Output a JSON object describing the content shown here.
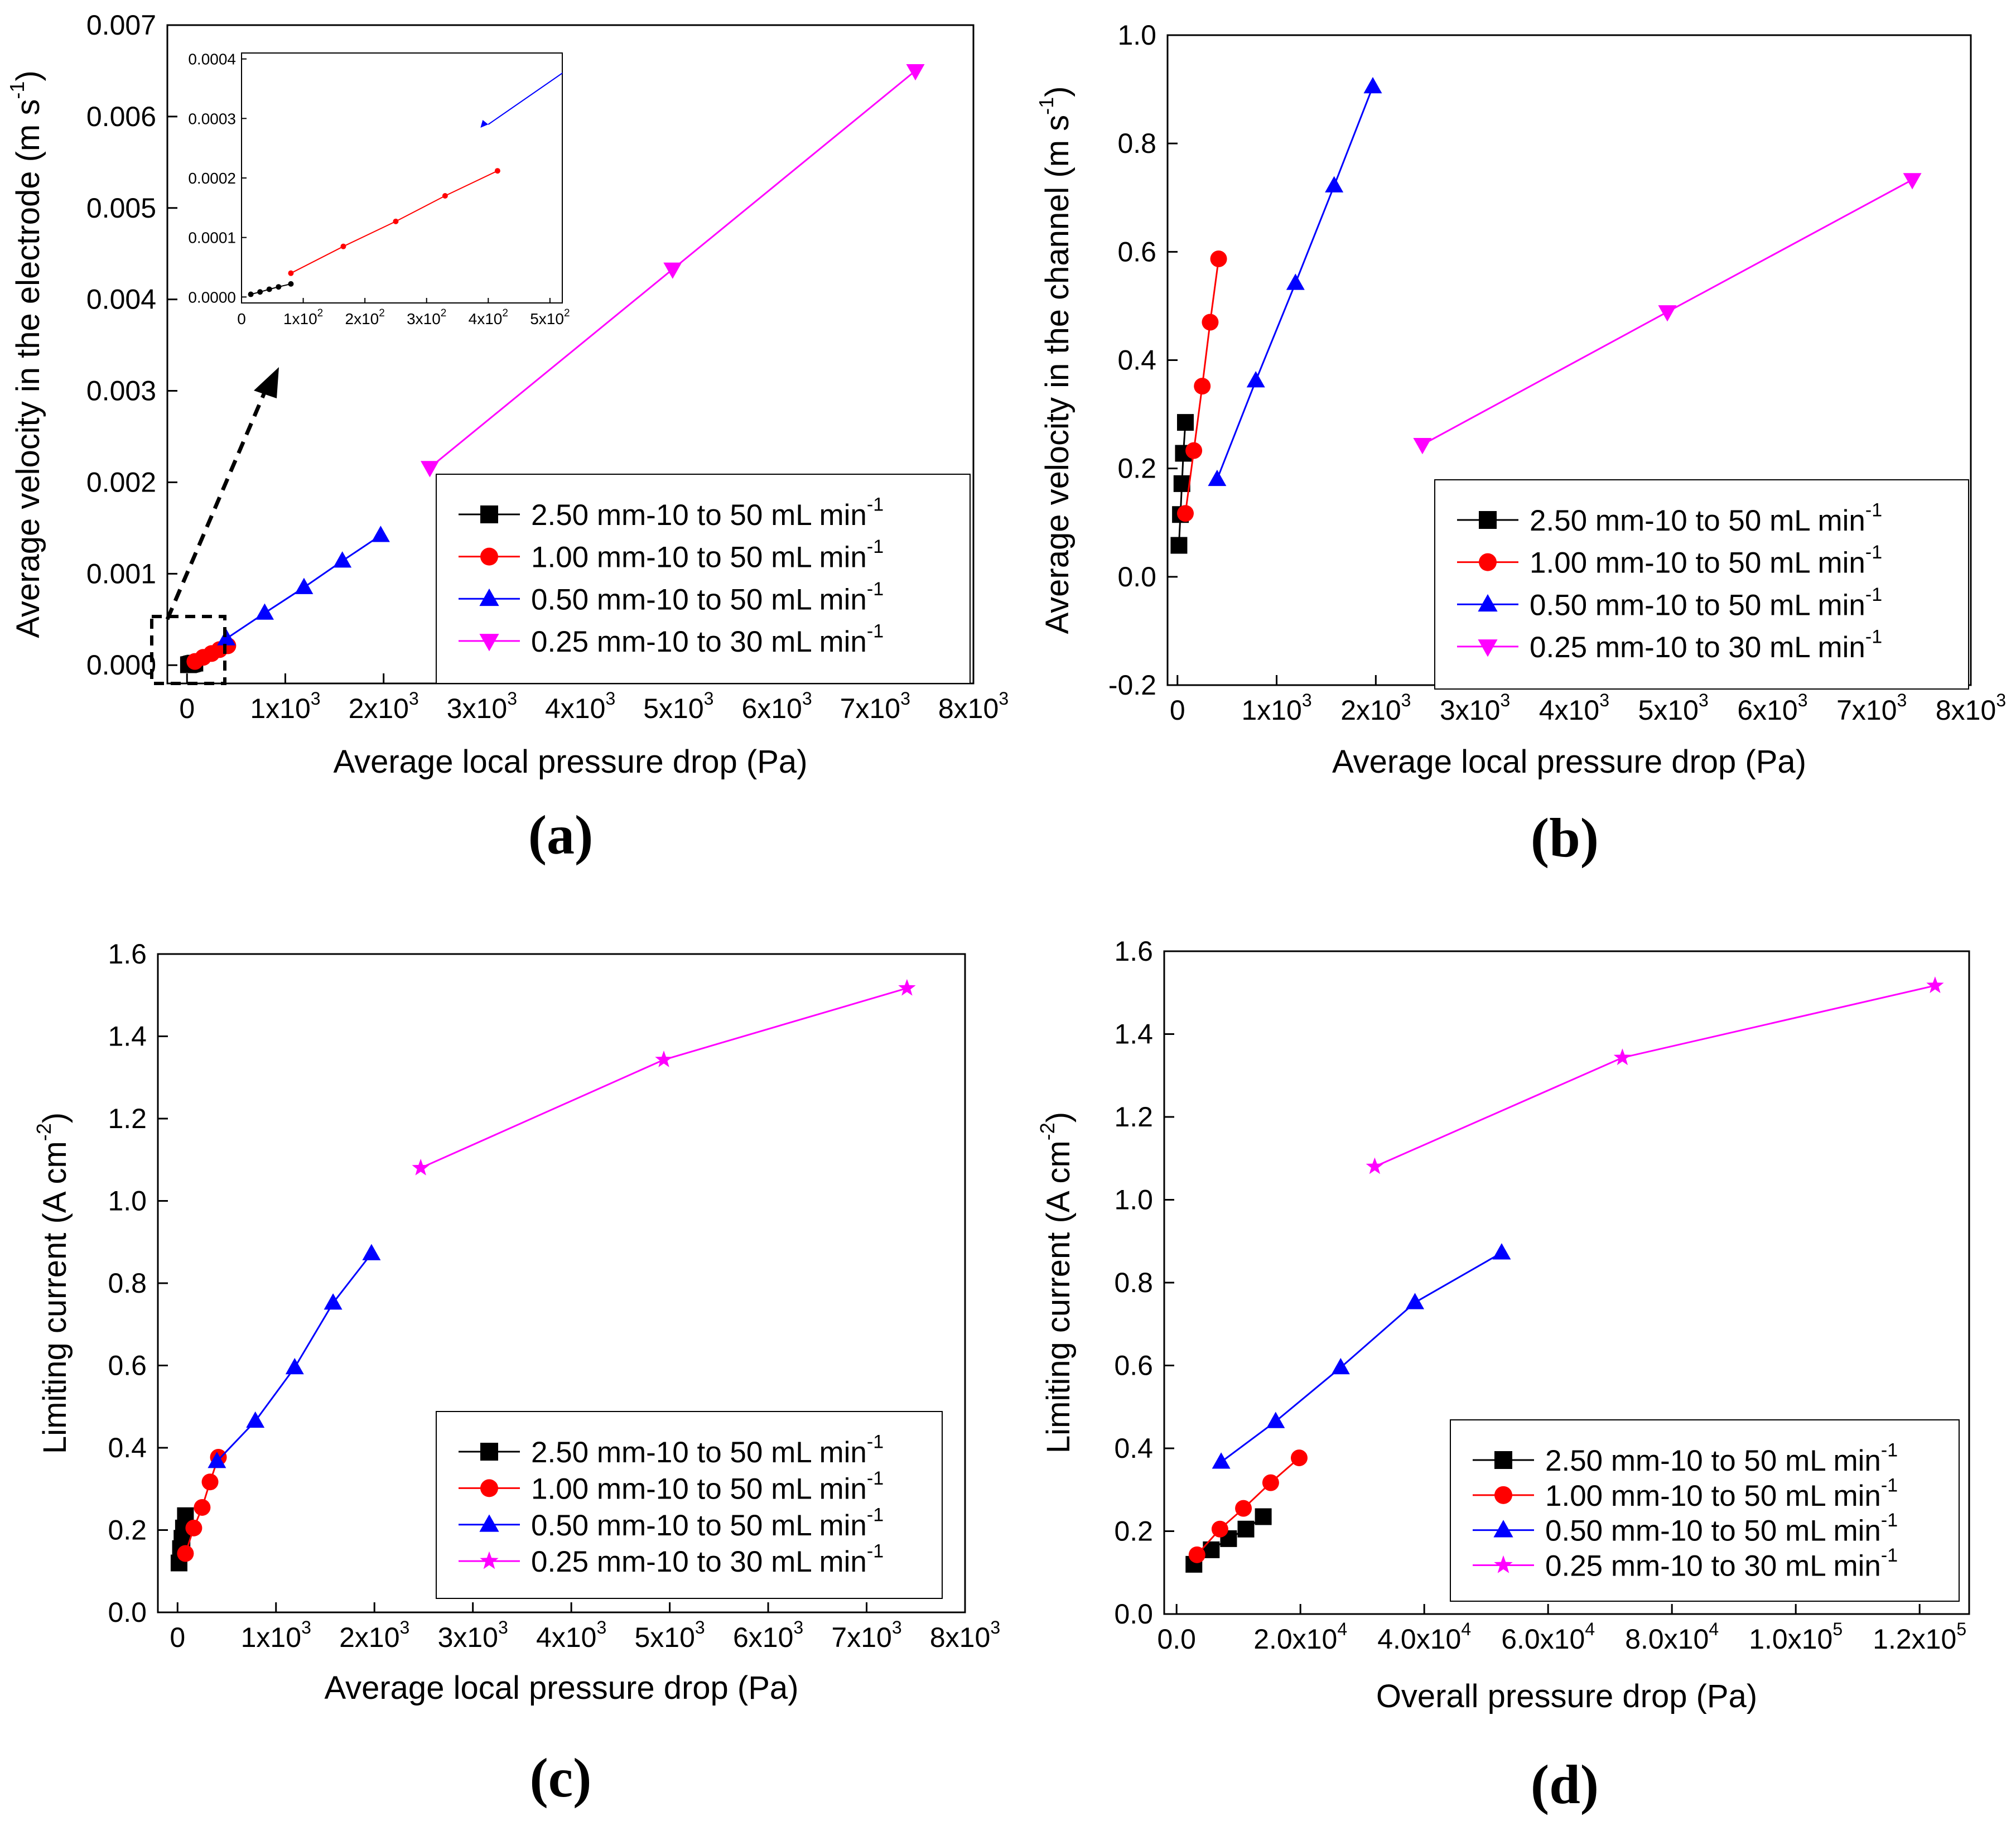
{
  "chart_data": [
    {
      "panel": "(a)",
      "type": "line",
      "xlabel": "Average local pressure drop (Pa)",
      "ylabel": "Average velocity in the electrode",
      "ylabel_unit": "(m s⁻¹)",
      "xlim": [
        -200,
        8000
      ],
      "ylim": [
        -0.0002,
        0.007
      ],
      "xticks": [
        0,
        1000,
        2000,
        3000,
        4000,
        5000,
        6000,
        7000,
        8000
      ],
      "xtick_labels": [
        "0",
        "1x10³",
        "2x10³",
        "3x10³",
        "4x10³",
        "5x10³",
        "6x10³",
        "7x10³",
        "8x10³"
      ],
      "yticks": [
        0,
        0.001,
        0.002,
        0.003,
        0.004,
        0.005,
        0.006,
        0.007
      ],
      "ytick_labels": [
        "0.000",
        "0.001",
        "0.002",
        "0.003",
        "0.004",
        "0.005",
        "0.006",
        "0.007"
      ],
      "legend": "bottom-right",
      "series": [
        {
          "name": "2.50 mm-10 to 50 mL min⁻¹",
          "color": "#000000",
          "marker": "square",
          "x": [
            15,
            30,
            45,
            60,
            80
          ],
          "y": [
            4.5e-06,
            8.5e-06,
            1.3e-05,
            1.7e-05,
            2.2e-05
          ]
        },
        {
          "name": "1.00 mm-10 to 50 mL min⁻¹",
          "color": "#ff0000",
          "marker": "circle",
          "x": [
            80,
            165,
            250,
            330,
            415
          ],
          "y": [
            4e-05,
            8.5e-05,
            0.000127,
            0.00017,
            0.000212
          ]
        },
        {
          "name": "0.50 mm-10 to 50 mL min⁻¹",
          "color": "#0000ff",
          "marker": "triangle-up",
          "x": [
            400,
            790,
            1190,
            1580,
            1970
          ],
          "y": [
            0.00029,
            0.00057,
            0.00085,
            0.00114,
            0.00142
          ]
        },
        {
          "name": "0.25 mm-10 to 30 mL min⁻¹",
          "color": "#ff00ff",
          "marker": "triangle-down",
          "x": [
            2470,
            4940,
            7410
          ],
          "y": [
            0.00216,
            0.00433,
            0.0065
          ]
        }
      ],
      "inset": {
        "xlim": [
          0,
          520
        ],
        "ylim": [
          -1e-05,
          0.00041
        ],
        "xticks": [
          0,
          100,
          200,
          300,
          400,
          500
        ],
        "xtick_labels": [
          "0",
          "1x10²",
          "2x10²",
          "3x10²",
          "4x10²",
          "5x10²"
        ],
        "yticks": [
          0,
          0.0001,
          0.0002,
          0.0003,
          0.0004
        ],
        "ytick_labels": [
          "0.0000",
          "0.0001",
          "0.0002",
          "0.0003",
          "0.0004"
        ]
      }
    },
    {
      "panel": "(b)",
      "type": "line",
      "xlabel": "Average local pressure drop (Pa)",
      "ylabel": "Average velocity in the channel",
      "ylabel_unit": "(m s⁻¹)",
      "xlim": [
        -100,
        8000
      ],
      "ylim": [
        -0.2,
        1.0
      ],
      "xticks": [
        0,
        1000,
        2000,
        3000,
        4000,
        5000,
        6000,
        7000,
        8000
      ],
      "xtick_labels": [
        "0",
        "1x10³",
        "2x10³",
        "3x10³",
        "4x10³",
        "5x10³",
        "6x10³",
        "7x10³",
        "8x10³"
      ],
      "yticks": [
        -0.2,
        0,
        0.2,
        0.4,
        0.6,
        0.8,
        1.0
      ],
      "ytick_labels": [
        "-0.2",
        "0.0",
        "0.2",
        "0.4",
        "0.6",
        "0.8",
        "1.0"
      ],
      "legend": "bottom-right",
      "series": [
        {
          "name": "2.50 mm-10 to 50 mL min⁻¹",
          "color": "#000000",
          "marker": "square",
          "x": [
            15,
            30,
            45,
            60,
            80
          ],
          "y": [
            0.058,
            0.115,
            0.172,
            0.228,
            0.285
          ]
        },
        {
          "name": "1.00 mm-10 to 50 mL min⁻¹",
          "color": "#ff0000",
          "marker": "circle",
          "x": [
            80,
            165,
            250,
            330,
            415
          ],
          "y": [
            0.117,
            0.233,
            0.352,
            0.47,
            0.587
          ]
        },
        {
          "name": "0.50 mm-10 to 50 mL min⁻¹",
          "color": "#0000ff",
          "marker": "triangle-up",
          "x": [
            400,
            790,
            1190,
            1580,
            1970
          ],
          "y": [
            0.18,
            0.362,
            0.542,
            0.722,
            0.905
          ]
        },
        {
          "name": "0.25 mm-10 to 30 mL min⁻¹",
          "color": "#ff00ff",
          "marker": "triangle-down",
          "x": [
            2470,
            4940,
            7410
          ],
          "y": [
            0.244,
            0.489,
            0.733
          ]
        }
      ]
    },
    {
      "panel": "(c)",
      "type": "line",
      "xlabel": "Average local pressure drop (Pa)",
      "ylabel": "Limiting current",
      "ylabel_unit": "(A cm⁻²)",
      "xlim": [
        -200,
        8000
      ],
      "ylim": [
        0,
        1.6
      ],
      "xticks": [
        0,
        1000,
        2000,
        3000,
        4000,
        5000,
        6000,
        7000,
        8000
      ],
      "xtick_labels": [
        "0",
        "1x10³",
        "2x10³",
        "3x10³",
        "4x10³",
        "5x10³",
        "6x10³",
        "7x10³",
        "8x10³"
      ],
      "yticks": [
        0,
        0.2,
        0.4,
        0.6,
        0.8,
        1.0,
        1.2,
        1.4,
        1.6
      ],
      "ytick_labels": [
        "0.0",
        "0.2",
        "0.4",
        "0.6",
        "0.8",
        "1.0",
        "1.2",
        "1.4",
        "1.6"
      ],
      "legend": "bottom-right",
      "series": [
        {
          "name": "2.50 mm-10 to 50 mL min⁻¹",
          "color": "#000000",
          "marker": "square",
          "x": [
            15,
            30,
            45,
            60,
            80
          ],
          "y": [
            0.12,
            0.155,
            0.18,
            0.205,
            0.235
          ]
        },
        {
          "name": "1.00 mm-10 to 50 mL min⁻¹",
          "color": "#ff0000",
          "marker": "circle",
          "x": [
            80,
            165,
            250,
            330,
            415
          ],
          "y": [
            0.143,
            0.205,
            0.255,
            0.317,
            0.377
          ]
        },
        {
          "name": "0.50 mm-10 to 50 mL min⁻¹",
          "color": "#0000ff",
          "marker": "triangle-up",
          "x": [
            400,
            790,
            1190,
            1580,
            1970
          ],
          "y": [
            0.367,
            0.465,
            0.595,
            0.752,
            0.872
          ]
        },
        {
          "name": "0.25 mm-10 to 30 mL min⁻¹",
          "color": "#ff00ff",
          "marker": "star",
          "x": [
            2470,
            4940,
            7410
          ],
          "y": [
            1.08,
            1.343,
            1.517
          ]
        }
      ]
    },
    {
      "panel": "(d)",
      "type": "line",
      "xlabel": "Overall pressure drop (Pa)",
      "ylabel": "Limiting current",
      "ylabel_unit": "(A cm⁻²)",
      "xlim": [
        -2000,
        128000
      ],
      "ylim": [
        0,
        1.6
      ],
      "xticks": [
        0,
        20000,
        40000,
        60000,
        80000,
        100000,
        120000
      ],
      "xtick_labels": [
        "0.0",
        "2.0x10⁴",
        "4.0x10⁴",
        "6.0x10⁴",
        "8.0x10⁴",
        "1.0x10⁵",
        "1.2x10⁵"
      ],
      "yticks": [
        0,
        0.2,
        0.4,
        0.6,
        0.8,
        1.0,
        1.2,
        1.4,
        1.6
      ],
      "ytick_labels": [
        "0.0",
        "0.2",
        "0.4",
        "0.6",
        "0.8",
        "1.0",
        "1.2",
        "1.4",
        "1.6"
      ],
      "legend": "bottom-right",
      "series": [
        {
          "name": "2.50 mm-10 to 50 mL min⁻¹",
          "color": "#000000",
          "marker": "square",
          "x": [
            2800,
            5600,
            8400,
            11200,
            14000
          ],
          "y": [
            0.12,
            0.155,
            0.182,
            0.205,
            0.235
          ]
        },
        {
          "name": "1.00 mm-10 to 50 mL min⁻¹",
          "color": "#ff0000",
          "marker": "circle",
          "x": [
            3300,
            7000,
            10800,
            15200,
            19800
          ],
          "y": [
            0.143,
            0.205,
            0.255,
            0.317,
            0.377
          ]
        },
        {
          "name": "0.50 mm-10 to 50 mL min⁻¹",
          "color": "#0000ff",
          "marker": "triangle-up",
          "x": [
            7200,
            16000,
            26500,
            38500,
            52500
          ],
          "y": [
            0.367,
            0.465,
            0.595,
            0.752,
            0.872
          ]
        },
        {
          "name": "0.25 mm-10 to 30 mL min⁻¹",
          "color": "#ff00ff",
          "marker": "star",
          "x": [
            32000,
            72000,
            122500
          ],
          "y": [
            1.08,
            1.343,
            1.517
          ]
        }
      ]
    }
  ]
}
